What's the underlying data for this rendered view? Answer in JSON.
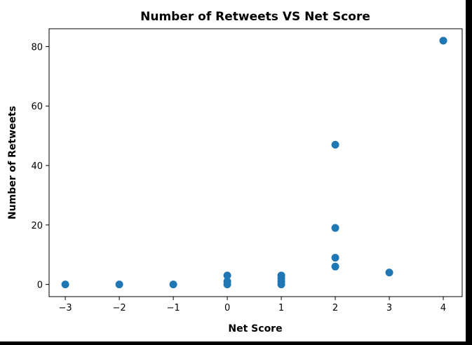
{
  "chart_data": {
    "type": "scatter",
    "title": "Number of Retweets VS Net Score",
    "xlabel": "Net Score",
    "ylabel": "Number of Retweets",
    "xlim": [
      -3.3,
      4.35
    ],
    "ylim": [
      -4.1,
      86.0
    ],
    "xticks": [
      -3,
      -2,
      -1,
      0,
      1,
      2,
      3,
      4
    ],
    "xtick_labels": [
      "−3",
      "−2",
      "−1",
      "0",
      "1",
      "2",
      "3",
      "4"
    ],
    "yticks": [
      0,
      20,
      40,
      60,
      80
    ],
    "ytick_labels": [
      "0",
      "20",
      "40",
      "60",
      "80"
    ],
    "grid": false,
    "marker_color": "#1f77b4",
    "points": [
      {
        "x": -3,
        "y": 0
      },
      {
        "x": -2,
        "y": 0
      },
      {
        "x": -1,
        "y": 0
      },
      {
        "x": 0,
        "y": 0
      },
      {
        "x": 0,
        "y": 1
      },
      {
        "x": 0,
        "y": 3
      },
      {
        "x": 1,
        "y": 0
      },
      {
        "x": 1,
        "y": 1
      },
      {
        "x": 1,
        "y": 2
      },
      {
        "x": 1,
        "y": 3
      },
      {
        "x": 2,
        "y": 6
      },
      {
        "x": 2,
        "y": 9
      },
      {
        "x": 2,
        "y": 19
      },
      {
        "x": 2,
        "y": 47
      },
      {
        "x": 3,
        "y": 4
      },
      {
        "x": 4,
        "y": 82
      }
    ]
  }
}
